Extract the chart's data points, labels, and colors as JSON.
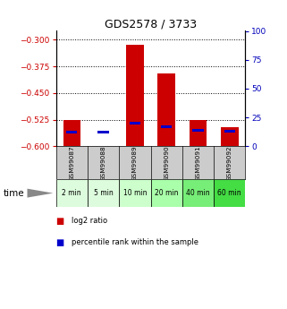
{
  "title": "GDS2578 / 3733",
  "samples": [
    "GSM99087",
    "GSM99088",
    "GSM99089",
    "GSM99090",
    "GSM99091",
    "GSM99092"
  ],
  "time_labels": [
    "2 min",
    "5 min",
    "10 min",
    "20 min",
    "40 min",
    "60 min"
  ],
  "log2_values": [
    -0.525,
    -0.6,
    -0.315,
    -0.395,
    -0.525,
    -0.545
  ],
  "log2_base": -0.6,
  "percentile_values": [
    12,
    12,
    20,
    17,
    14,
    13
  ],
  "ylim_left": [
    -0.6,
    -0.275
  ],
  "ylim_right": [
    0,
    100
  ],
  "yticks_left": [
    -0.6,
    -0.525,
    -0.45,
    -0.375,
    -0.3
  ],
  "yticks_right": [
    0,
    25,
    50,
    75,
    100
  ],
  "bar_color_red": "#cc0000",
  "bar_color_blue": "#0000cc",
  "left_tick_color": "#cc0000",
  "right_tick_color": "#0000bb",
  "sample_bg_color": "#cccccc",
  "time_bg_colors": [
    "#ddfcdd",
    "#ddfcdd",
    "#ccffcc",
    "#aaffaa",
    "#77ee77",
    "#44dd44"
  ],
  "bar_width": 0.55,
  "blue_bar_width": 0.35,
  "legend_red_label": "log2 ratio",
  "legend_blue_label": "percentile rank within the sample"
}
